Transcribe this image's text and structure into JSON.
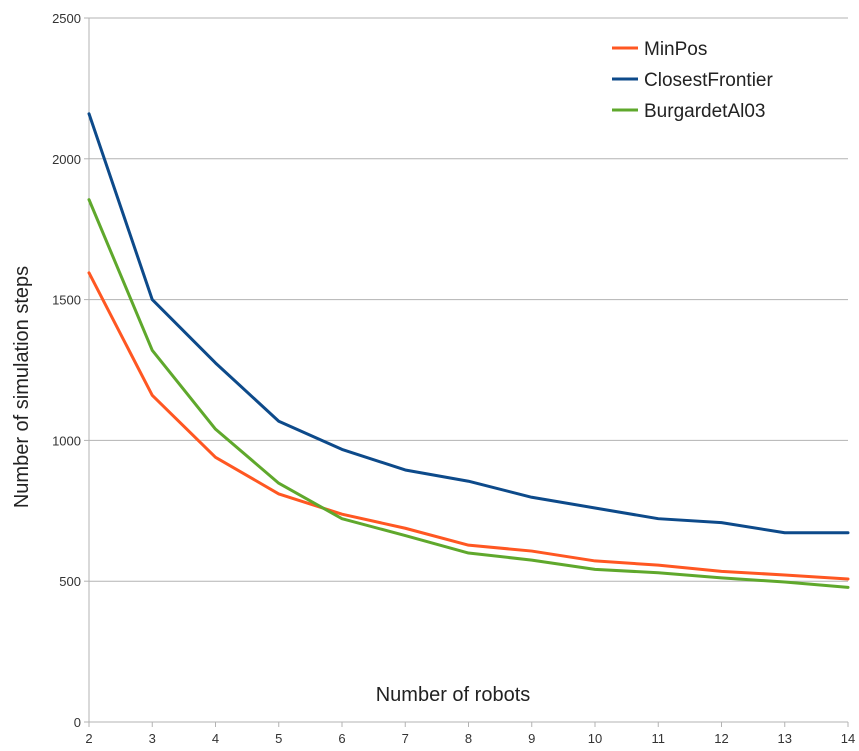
{
  "chart_data": {
    "type": "line",
    "xlabel": "Number of robots",
    "ylabel": "Number of simulation steps",
    "x": [
      2,
      3,
      4,
      5,
      6,
      7,
      8,
      9,
      10,
      11,
      12,
      13,
      14
    ],
    "ylim": [
      0,
      2500
    ],
    "yticks": [
      "0",
      "500",
      "1000",
      "1500",
      "2000",
      "2500"
    ],
    "xticks": [
      "2",
      "3",
      "4",
      "5",
      "6",
      "7",
      "8",
      "9",
      "10",
      "11",
      "12",
      "13",
      "14"
    ],
    "grid": "horizontal",
    "legend": "top-right",
    "series": [
      {
        "name": "MinPos",
        "color": "#ff5722",
        "values": [
          1595,
          1160,
          940,
          810,
          738,
          688,
          628,
          607,
          572,
          557,
          535,
          522,
          508
        ]
      },
      {
        "name": "ClosestFrontier",
        "color": "#0d4a8a",
        "values": [
          2160,
          1500,
          1275,
          1068,
          968,
          895,
          855,
          798,
          760,
          722,
          708,
          672,
          672
        ]
      },
      {
        "name": "BurgardetAl03",
        "color": "#5fa82c",
        "values": [
          1855,
          1320,
          1040,
          848,
          722,
          662,
          600,
          575,
          542,
          530,
          512,
          497,
          478
        ]
      }
    ]
  }
}
